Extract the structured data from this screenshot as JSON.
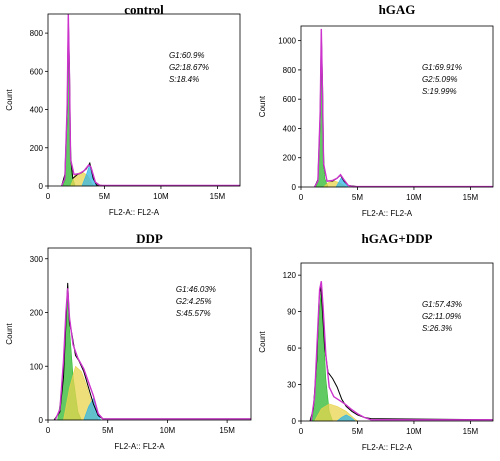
{
  "chart_data": [
    {
      "type": "area",
      "title": "control",
      "xlabel": "FL2-A:: FL2-A",
      "ylabel": "Count",
      "xlim": [
        0,
        17
      ],
      "ylim": [
        0,
        900
      ],
      "xticks": [
        0,
        5,
        10,
        15
      ],
      "xtick_labels": [
        "0",
        "5M",
        "10M",
        "15M"
      ],
      "yticks": [
        0,
        200,
        400,
        600,
        800
      ],
      "annotations": [
        "G1:60.9%",
        "G2:18.67%",
        "S:18.4%"
      ],
      "series": [
        {
          "role": "measured-histogram",
          "color": "#000000",
          "points": [
            [
              1.2,
              0
            ],
            [
              1.5,
              60
            ],
            [
              1.7,
              400
            ],
            [
              1.8,
              880
            ],
            [
              1.9,
              600
            ],
            [
              2.0,
              150
            ],
            [
              2.2,
              40
            ],
            [
              2.6,
              60
            ],
            [
              3.0,
              70
            ],
            [
              3.4,
              90
            ],
            [
              3.7,
              120
            ],
            [
              4.0,
              40
            ],
            [
              4.3,
              5
            ],
            [
              5,
              2
            ],
            [
              17,
              2
            ]
          ]
        },
        {
          "role": "G1",
          "color": "#2eb82e",
          "points": [
            [
              1.3,
              0
            ],
            [
              1.5,
              30
            ],
            [
              1.7,
              400
            ],
            [
              1.8,
              830
            ],
            [
              1.9,
              400
            ],
            [
              2.1,
              60
            ],
            [
              2.4,
              0
            ]
          ]
        },
        {
          "role": "S",
          "color": "#e8d44d",
          "points": [
            [
              2.0,
              0
            ],
            [
              2.4,
              60
            ],
            [
              3.0,
              75
            ],
            [
              3.5,
              55
            ],
            [
              4.0,
              0
            ]
          ]
        },
        {
          "role": "G2",
          "color": "#33b5e5",
          "points": [
            [
              3.0,
              0
            ],
            [
              3.4,
              60
            ],
            [
              3.7,
              115
            ],
            [
              4.0,
              40
            ],
            [
              4.3,
              0
            ]
          ]
        },
        {
          "role": "fit",
          "color": "#cc33cc",
          "points": [
            [
              1.2,
              0
            ],
            [
              1.5,
              40
            ],
            [
              1.7,
              430
            ],
            [
              1.8,
              900
            ],
            [
              1.9,
              560
            ],
            [
              2.0,
              140
            ],
            [
              2.3,
              60
            ],
            [
              2.8,
              65
            ],
            [
              3.2,
              80
            ],
            [
              3.6,
              110
            ],
            [
              3.8,
              100
            ],
            [
              4.2,
              20
            ],
            [
              4.6,
              3
            ],
            [
              17,
              3
            ]
          ]
        }
      ]
    },
    {
      "type": "area",
      "title": "hGAG",
      "xlabel": "FL2-A:: FL2-A",
      "ylabel": "Count",
      "xlim": [
        0,
        17
      ],
      "ylim": [
        0,
        1100
      ],
      "xticks": [
        0,
        5,
        10,
        15
      ],
      "xtick_labels": [
        "0",
        "5M",
        "10M",
        "15M"
      ],
      "yticks": [
        0,
        200,
        400,
        600,
        800,
        1000
      ],
      "annotations": [
        "G1:69.91%",
        "G2:5.09%",
        "S:19.99%"
      ],
      "series": [
        {
          "role": "measured-histogram",
          "color": "#000000",
          "points": [
            [
              1.2,
              0
            ],
            [
              1.5,
              50
            ],
            [
              1.7,
              500
            ],
            [
              1.8,
              1050
            ],
            [
              1.9,
              700
            ],
            [
              2.0,
              150
            ],
            [
              2.3,
              40
            ],
            [
              2.8,
              40
            ],
            [
              3.2,
              60
            ],
            [
              3.5,
              80
            ],
            [
              3.8,
              40
            ],
            [
              4.2,
              10
            ],
            [
              5,
              3
            ],
            [
              17,
              3
            ]
          ]
        },
        {
          "role": "G1",
          "color": "#2eb82e",
          "points": [
            [
              1.3,
              0
            ],
            [
              1.5,
              30
            ],
            [
              1.7,
              450
            ],
            [
              1.8,
              1000
            ],
            [
              1.9,
              450
            ],
            [
              2.1,
              60
            ],
            [
              2.4,
              0
            ]
          ]
        },
        {
          "role": "S",
          "color": "#e8d44d",
          "points": [
            [
              2.0,
              0
            ],
            [
              2.4,
              30
            ],
            [
              3.0,
              40
            ],
            [
              3.5,
              25
            ],
            [
              4.0,
              0
            ]
          ]
        },
        {
          "role": "G2",
          "color": "#33b5e5",
          "points": [
            [
              3.1,
              0
            ],
            [
              3.4,
              40
            ],
            [
              3.6,
              70
            ],
            [
              3.9,
              25
            ],
            [
              4.2,
              0
            ]
          ]
        },
        {
          "role": "fit",
          "color": "#cc33cc",
          "points": [
            [
              1.2,
              0
            ],
            [
              1.5,
              40
            ],
            [
              1.7,
              520
            ],
            [
              1.8,
              1080
            ],
            [
              1.9,
              650
            ],
            [
              2.0,
              160
            ],
            [
              2.3,
              40
            ],
            [
              2.8,
              45
            ],
            [
              3.2,
              60
            ],
            [
              3.5,
              85
            ],
            [
              3.8,
              50
            ],
            [
              4.2,
              10
            ],
            [
              4.6,
              3
            ],
            [
              17,
              3
            ]
          ]
        }
      ]
    },
    {
      "type": "area",
      "title": "DDP",
      "xlabel": "FL2-A:: FL2-A",
      "ylabel": "Count",
      "xlim": [
        0,
        17
      ],
      "ylim": [
        0,
        320
      ],
      "xticks": [
        0,
        5,
        10,
        15
      ],
      "xtick_labels": [
        "0",
        "5M",
        "10M",
        "15M"
      ],
      "yticks": [
        0,
        100,
        200,
        300
      ],
      "annotations": [
        "G1:46.03%",
        "G2:4.25%",
        "S:45.57%"
      ],
      "series": [
        {
          "role": "measured-histogram",
          "color": "#000000",
          "points": [
            [
              0.5,
              0
            ],
            [
              1.0,
              15
            ],
            [
              1.3,
              80
            ],
            [
              1.5,
              180
            ],
            [
              1.65,
              255
            ],
            [
              1.8,
              180
            ],
            [
              2.0,
              160
            ],
            [
              2.3,
              120
            ],
            [
              2.6,
              110
            ],
            [
              3.0,
              90
            ],
            [
              3.4,
              60
            ],
            [
              3.8,
              30
            ],
            [
              4.2,
              8
            ],
            [
              4.6,
              2
            ],
            [
              17,
              2
            ]
          ]
        },
        {
          "role": "G1",
          "color": "#2eb82e",
          "points": [
            [
              0.8,
              0
            ],
            [
              1.2,
              60
            ],
            [
              1.5,
              170
            ],
            [
              1.65,
              235
            ],
            [
              1.8,
              170
            ],
            [
              2.1,
              80
            ],
            [
              2.5,
              15
            ],
            [
              2.8,
              0
            ]
          ]
        },
        {
          "role": "S",
          "color": "#e8d44d",
          "points": [
            [
              1.3,
              0
            ],
            [
              1.8,
              60
            ],
            [
              2.3,
              100
            ],
            [
              2.8,
              90
            ],
            [
              3.3,
              60
            ],
            [
              3.8,
              20
            ],
            [
              4.2,
              0
            ]
          ]
        },
        {
          "role": "G2",
          "color": "#33b5e5",
          "points": [
            [
              3.0,
              0
            ],
            [
              3.4,
              25
            ],
            [
              3.8,
              40
            ],
            [
              4.1,
              20
            ],
            [
              4.4,
              0
            ]
          ]
        },
        {
          "role": "fit",
          "color": "#cc33cc",
          "points": [
            [
              0.6,
              0
            ],
            [
              1.0,
              20
            ],
            [
              1.3,
              110
            ],
            [
              1.5,
              200
            ],
            [
              1.65,
              245
            ],
            [
              1.8,
              190
            ],
            [
              2.1,
              140
            ],
            [
              2.5,
              115
            ],
            [
              3.0,
              95
            ],
            [
              3.4,
              70
            ],
            [
              3.8,
              45
            ],
            [
              4.2,
              12
            ],
            [
              4.6,
              2
            ],
            [
              17,
              2
            ]
          ]
        }
      ]
    },
    {
      "type": "area",
      "title": "hGAG+DDP",
      "xlabel": "FL2-A:: FL2-A",
      "ylabel": "Count",
      "xlim": [
        0,
        17
      ],
      "ylim": [
        0,
        130
      ],
      "xticks": [
        0,
        5,
        10,
        15
      ],
      "xtick_labels": [
        "0",
        "5M",
        "10M",
        "15M"
      ],
      "yticks": [
        0,
        30,
        60,
        90,
        120
      ],
      "annotations": [
        "G1:57.43%",
        "G2:11.09%",
        "S:26.3%"
      ],
      "series": [
        {
          "role": "measured-histogram",
          "color": "#000000",
          "points": [
            [
              0.8,
              0
            ],
            [
              1.1,
              10
            ],
            [
              1.4,
              50
            ],
            [
              1.6,
              100
            ],
            [
              1.75,
              112
            ],
            [
              1.9,
              90
            ],
            [
              2.1,
              60
            ],
            [
              2.4,
              40
            ],
            [
              2.8,
              35
            ],
            [
              3.2,
              28
            ],
            [
              3.6,
              18
            ],
            [
              4.0,
              12
            ],
            [
              4.5,
              8
            ],
            [
              5.0,
              5
            ],
            [
              5.6,
              3
            ],
            [
              6.2,
              2
            ],
            [
              17,
              1
            ]
          ]
        },
        {
          "role": "G1",
          "color": "#2eb82e",
          "points": [
            [
              1.0,
              0
            ],
            [
              1.3,
              30
            ],
            [
              1.55,
              80
            ],
            [
              1.75,
              105
            ],
            [
              1.95,
              80
            ],
            [
              2.2,
              35
            ],
            [
              2.5,
              8
            ],
            [
              2.8,
              0
            ]
          ]
        },
        {
          "role": "S",
          "color": "#e8d44d",
          "points": [
            [
              1.2,
              0
            ],
            [
              1.8,
              10
            ],
            [
              2.5,
              14
            ],
            [
              3.2,
              12
            ],
            [
              4.0,
              8
            ],
            [
              4.6,
              3
            ],
            [
              5.0,
              0
            ]
          ]
        },
        {
          "role": "G2",
          "color": "#33b5e5",
          "points": [
            [
              3.2,
              0
            ],
            [
              3.6,
              3
            ],
            [
              4.0,
              5
            ],
            [
              4.4,
              3
            ],
            [
              4.8,
              0
            ]
          ]
        },
        {
          "role": "fit",
          "color": "#cc33cc",
          "points": [
            [
              0.9,
              0
            ],
            [
              1.2,
              20
            ],
            [
              1.45,
              70
            ],
            [
              1.65,
              108
            ],
            [
              1.8,
              115
            ],
            [
              1.95,
              95
            ],
            [
              2.2,
              55
            ],
            [
              2.5,
              28
            ],
            [
              2.9,
              20
            ],
            [
              3.4,
              17
            ],
            [
              3.9,
              14
            ],
            [
              4.4,
              10
            ],
            [
              5.0,
              6
            ],
            [
              5.6,
              3
            ],
            [
              6.2,
              1
            ],
            [
              17,
              1
            ]
          ]
        }
      ]
    }
  ]
}
